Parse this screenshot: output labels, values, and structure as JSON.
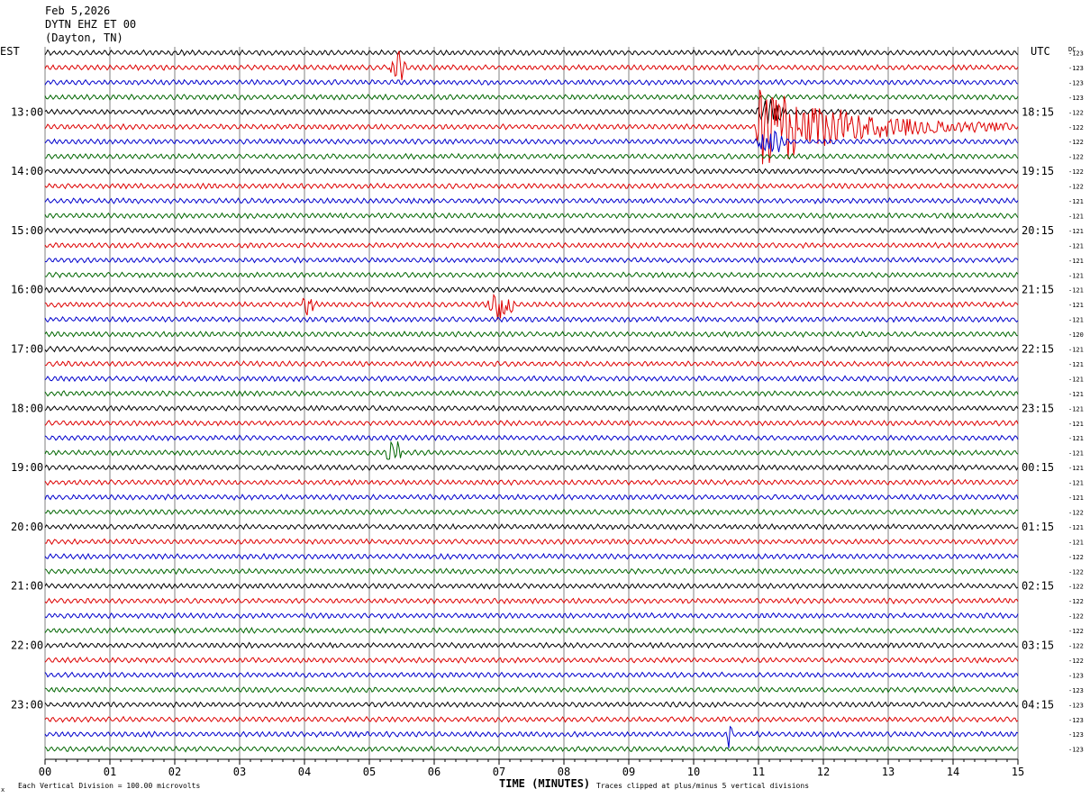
{
  "header": {
    "date": "Feb 5,2026",
    "station": "DYTN EHZ ET 00",
    "location": "(Dayton, TN)"
  },
  "left_zone": "EST",
  "right_zone": "UTC",
  "dc_label": "DC",
  "footer": {
    "scale_note": "Each Vertical Division =  100.00 microvolts",
    "clip_note": "Traces clipped at plus/minus 5 vertical divisions",
    "corner_mark": "x"
  },
  "chart_data": {
    "type": "line",
    "title": "",
    "xlabel": "TIME (MINUTES)",
    "ylabel": "",
    "xlim": [
      0,
      15
    ],
    "x_ticks": [
      "00",
      "01",
      "02",
      "03",
      "04",
      "05",
      "06",
      "07",
      "08",
      "09",
      "10",
      "11",
      "12",
      "13",
      "14",
      "15"
    ],
    "trace_colors": [
      "#000000",
      "#dd0000",
      "#0000cc",
      "#006600"
    ],
    "row_count": 48,
    "left_hour_labels": [
      {
        "row": 4,
        "text": "13:00"
      },
      {
        "row": 8,
        "text": "14:00"
      },
      {
        "row": 12,
        "text": "15:00"
      },
      {
        "row": 16,
        "text": "16:00"
      },
      {
        "row": 20,
        "text": "17:00"
      },
      {
        "row": 24,
        "text": "18:00"
      },
      {
        "row": 28,
        "text": "19:00"
      },
      {
        "row": 32,
        "text": "20:00"
      },
      {
        "row": 36,
        "text": "21:00"
      },
      {
        "row": 40,
        "text": "22:00"
      },
      {
        "row": 44,
        "text": "23:00"
      }
    ],
    "right_hour_labels": [
      {
        "row": 4,
        "text": "18:15"
      },
      {
        "row": 8,
        "text": "19:15"
      },
      {
        "row": 12,
        "text": "20:15"
      },
      {
        "row": 16,
        "text": "21:15"
      },
      {
        "row": 20,
        "text": "22:15"
      },
      {
        "row": 24,
        "text": "23:15"
      },
      {
        "row": 28,
        "text": "00:15"
      },
      {
        "row": 32,
        "text": "01:15"
      },
      {
        "row": 36,
        "text": "02:15"
      },
      {
        "row": 40,
        "text": "03:15"
      },
      {
        "row": 44,
        "text": "04:15"
      }
    ],
    "dc_offsets": [
      "-123",
      "-123",
      "-123",
      "-123",
      "-122",
      "-122",
      "-122",
      "-122",
      "-122",
      "-122",
      "-121",
      "-121",
      "-121",
      "-121",
      "-121",
      "-121",
      "-121",
      "-121",
      "-121",
      "-120",
      "-121",
      "-121",
      "-121",
      "-121",
      "-121",
      "-121",
      "-121",
      "-121",
      "-121",
      "-121",
      "-121",
      "-122",
      "-121",
      "-121",
      "-122",
      "-122",
      "-122",
      "-122",
      "-122",
      "-122",
      "-122",
      "-122",
      "-123",
      "-123",
      "-123",
      "-123",
      "-123",
      "-123"
    ],
    "events": [
      {
        "row": 1,
        "minute": 5.3,
        "duration": 0.3,
        "amplitude": 2.2
      },
      {
        "row": 5,
        "minute": 10.95,
        "duration": 4.0,
        "amplitude": 7.0,
        "clipped": true
      },
      {
        "row": 4,
        "minute": 10.95,
        "duration": 0.5,
        "amplitude": 1.8
      },
      {
        "row": 6,
        "minute": 10.95,
        "duration": 0.5,
        "amplitude": 1.8
      },
      {
        "row": 17,
        "minute": 6.8,
        "duration": 0.45,
        "amplitude": 2.6
      },
      {
        "row": 17,
        "minute": 3.9,
        "duration": 0.3,
        "amplitude": 1.3
      },
      {
        "row": 27,
        "minute": 5.25,
        "duration": 0.25,
        "amplitude": 2.4
      },
      {
        "row": 46,
        "minute": 10.5,
        "duration": 0.1,
        "amplitude": 2.0
      }
    ]
  }
}
